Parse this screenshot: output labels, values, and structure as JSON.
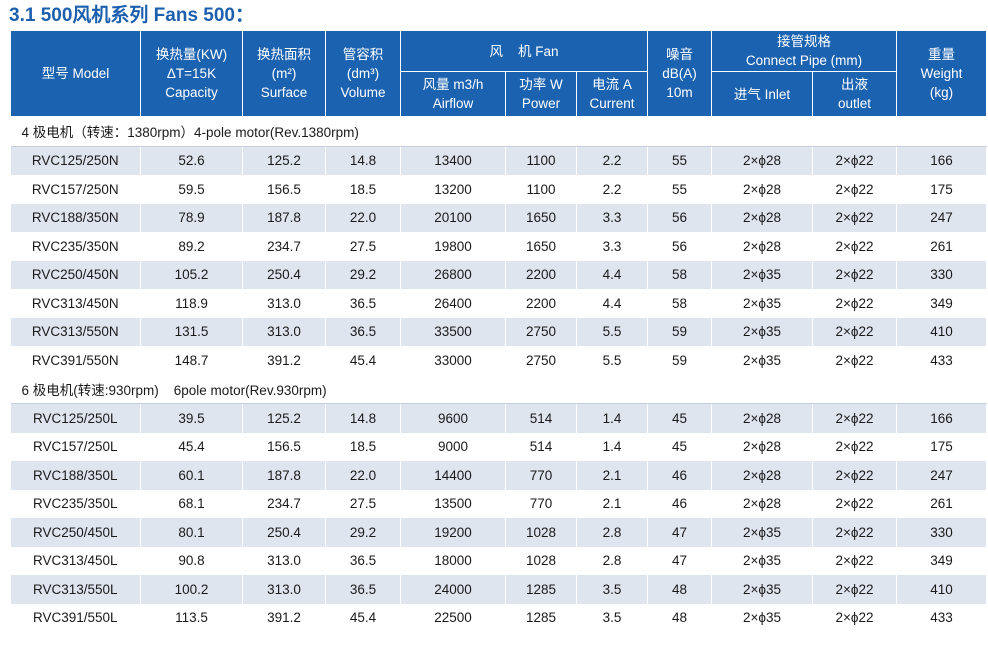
{
  "title": "3.1 500风机系列 Fans 500：",
  "headers": {
    "model": "型号 Model",
    "capacity": [
      "换热量(KW)",
      "ΔT=15K",
      "Capacity"
    ],
    "surface": [
      "换热面积",
      "(m²)",
      "Surface"
    ],
    "volume": [
      "管容积",
      "(dm³)",
      "Volume"
    ],
    "fan_group": "风    机 Fan",
    "airflow": [
      "风量 m3/h",
      "Airflow"
    ],
    "power": [
      "功率 W",
      "Power"
    ],
    "current": [
      "电流 A",
      "Current"
    ],
    "noise": [
      "噪音",
      "dB(A)",
      "10m"
    ],
    "pipe_group": [
      "接管规格",
      "Connect Pipe (mm)"
    ],
    "inlet": "进气 Inlet",
    "outlet": [
      "出液",
      "outlet"
    ],
    "weight": [
      "重量",
      "Weight",
      "(kg)"
    ]
  },
  "sections": [
    {
      "label": "4 极电机（转速：1380rpm）4-pole motor(Rev.1380rpm)",
      "rows": [
        [
          "RVC125/250N",
          "52.6",
          "125.2",
          "14.8",
          "13400",
          "1100",
          "2.2",
          "55",
          "2×ϕ28",
          "2×ϕ22",
          "166"
        ],
        [
          "RVC157/250N",
          "59.5",
          "156.5",
          "18.5",
          "13200",
          "1100",
          "2.2",
          "55",
          "2×ϕ28",
          "2×ϕ22",
          "175"
        ],
        [
          "RVC188/350N",
          "78.9",
          "187.8",
          "22.0",
          "20100",
          "1650",
          "3.3",
          "56",
          "2×ϕ28",
          "2×ϕ22",
          "247"
        ],
        [
          "RVC235/350N",
          "89.2",
          "234.7",
          "27.5",
          "19800",
          "1650",
          "3.3",
          "56",
          "2×ϕ28",
          "2×ϕ22",
          "261"
        ],
        [
          "RVC250/450N",
          "105.2",
          "250.4",
          "29.2",
          "26800",
          "2200",
          "4.4",
          "58",
          "2×ϕ35",
          "2×ϕ22",
          "330"
        ],
        [
          "RVC313/450N",
          "118.9",
          "313.0",
          "36.5",
          "26400",
          "2200",
          "4.4",
          "58",
          "2×ϕ35",
          "2×ϕ22",
          "349"
        ],
        [
          "RVC313/550N",
          "131.5",
          "313.0",
          "36.5",
          "33500",
          "2750",
          "5.5",
          "59",
          "2×ϕ35",
          "2×ϕ22",
          "410"
        ],
        [
          "RVC391/550N",
          "148.7",
          "391.2",
          "45.4",
          "33000",
          "2750",
          "5.5",
          "59",
          "2×ϕ35",
          "2×ϕ22",
          "433"
        ]
      ]
    },
    {
      "label": "6 极电机(转速:930rpm)    6pole motor(Rev.930rpm)",
      "rows": [
        [
          "RVC125/250L",
          "39.5",
          "125.2",
          "14.8",
          "9600",
          "514",
          "1.4",
          "45",
          "2×ϕ28",
          "2×ϕ22",
          "166"
        ],
        [
          "RVC157/250L",
          "45.4",
          "156.5",
          "18.5",
          "9000",
          "514",
          "1.4",
          "45",
          "2×ϕ28",
          "2×ϕ22",
          "175"
        ],
        [
          "RVC188/350L",
          "60.1",
          "187.8",
          "22.0",
          "14400",
          "770",
          "2.1",
          "46",
          "2×ϕ28",
          "2×ϕ22",
          "247"
        ],
        [
          "RVC235/350L",
          "68.1",
          "234.7",
          "27.5",
          "13500",
          "770",
          "2.1",
          "46",
          "2×ϕ28",
          "2×ϕ22",
          "261"
        ],
        [
          "RVC250/450L",
          "80.1",
          "250.4",
          "29.2",
          "19200",
          "1028",
          "2.8",
          "47",
          "2×ϕ35",
          "2×ϕ22",
          "330"
        ],
        [
          "RVC313/450L",
          "90.8",
          "313.0",
          "36.5",
          "18000",
          "1028",
          "2.8",
          "47",
          "2×ϕ35",
          "2×ϕ22",
          "349"
        ],
        [
          "RVC313/550L",
          "100.2",
          "313.0",
          "36.5",
          "24000",
          "1285",
          "3.5",
          "48",
          "2×ϕ35",
          "2×ϕ22",
          "410"
        ],
        [
          "RVC391/550L",
          "113.5",
          "391.2",
          "45.4",
          "22500",
          "1285",
          "3.5",
          "48",
          "2×ϕ35",
          "2×ϕ22",
          "433"
        ]
      ]
    }
  ]
}
